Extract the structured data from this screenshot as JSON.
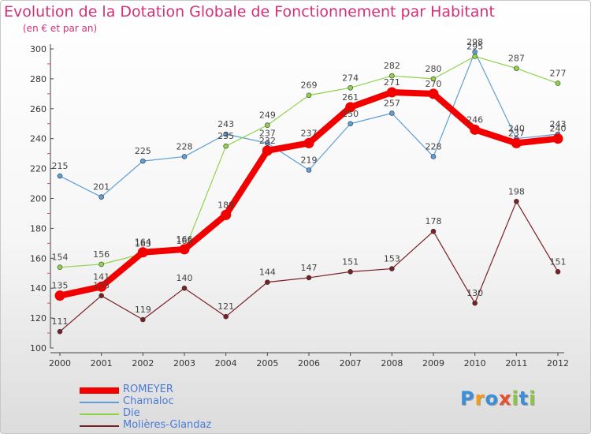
{
  "chart_data": {
    "type": "line",
    "title": "Evolution de la Dotation Globale de Fonctionnement par Habitant",
    "subtitle": "(en € et par an)",
    "xlabel": "",
    "ylabel": "",
    "x": [
      "2000",
      "2001",
      "2002",
      "2003",
      "2004",
      "2005",
      "2006",
      "2007",
      "2008",
      "2009",
      "2010",
      "2011",
      "2012"
    ],
    "ylim": [
      100,
      300
    ],
    "yticks": [
      "100",
      "120",
      "140",
      "160",
      "180",
      "200",
      "220",
      "240",
      "260",
      "280",
      "300"
    ],
    "grid": false,
    "legend_position": "bottom-left",
    "series": [
      {
        "name": "Chamaloc",
        "color": "#5e9ed6",
        "values": [
          215,
          201,
          225,
          228,
          243,
          237,
          219,
          250,
          257,
          228,
          298,
          240,
          243
        ],
        "labels": [
          "215",
          "201",
          "225",
          "228",
          "243",
          "237",
          "219",
          "250",
          "257",
          "228",
          "298",
          "240",
          "243"
        ]
      },
      {
        "name": "Die",
        "color": "#8ed34a",
        "values": [
          154,
          156,
          163,
          165,
          235,
          249,
          269,
          274,
          282,
          280,
          295,
          287,
          277
        ],
        "labels": [
          "154",
          "156",
          "163",
          "165",
          "235",
          "249",
          "269",
          "274",
          "282",
          "280",
          "295",
          "287",
          "277"
        ]
      },
      {
        "name": "Molières-Glandaz",
        "color": "#7a1f25",
        "values": [
          111,
          135,
          119,
          140,
          121,
          144,
          147,
          151,
          153,
          178,
          130,
          198,
          151
        ],
        "labels": [
          "111",
          "135",
          "119",
          "140",
          "121",
          "144",
          "147",
          "151",
          "153",
          "178",
          "130",
          "198",
          "151"
        ]
      },
      {
        "name": "ROMEYER",
        "color": "#f20000",
        "values": [
          135,
          141,
          164,
          166,
          189,
          232,
          237,
          261,
          271,
          270,
          246,
          237,
          240
        ],
        "labels": [
          "135",
          "141",
          "164",
          "166",
          "189",
          "232",
          "237",
          "261",
          "271",
          "270",
          "246",
          "237",
          "240"
        ]
      }
    ],
    "legend": [
      "ROMEYER",
      "Chamaloc",
      "Die",
      "Molières-Glandaz"
    ]
  },
  "logo": {
    "text": "Proxiti",
    "colors": [
      "#3b8fd8",
      "#f29b1a",
      "#3b8fd8",
      "#e84f2a",
      "#8cc63f",
      "#3b8fd8",
      "#8cc63f"
    ]
  }
}
